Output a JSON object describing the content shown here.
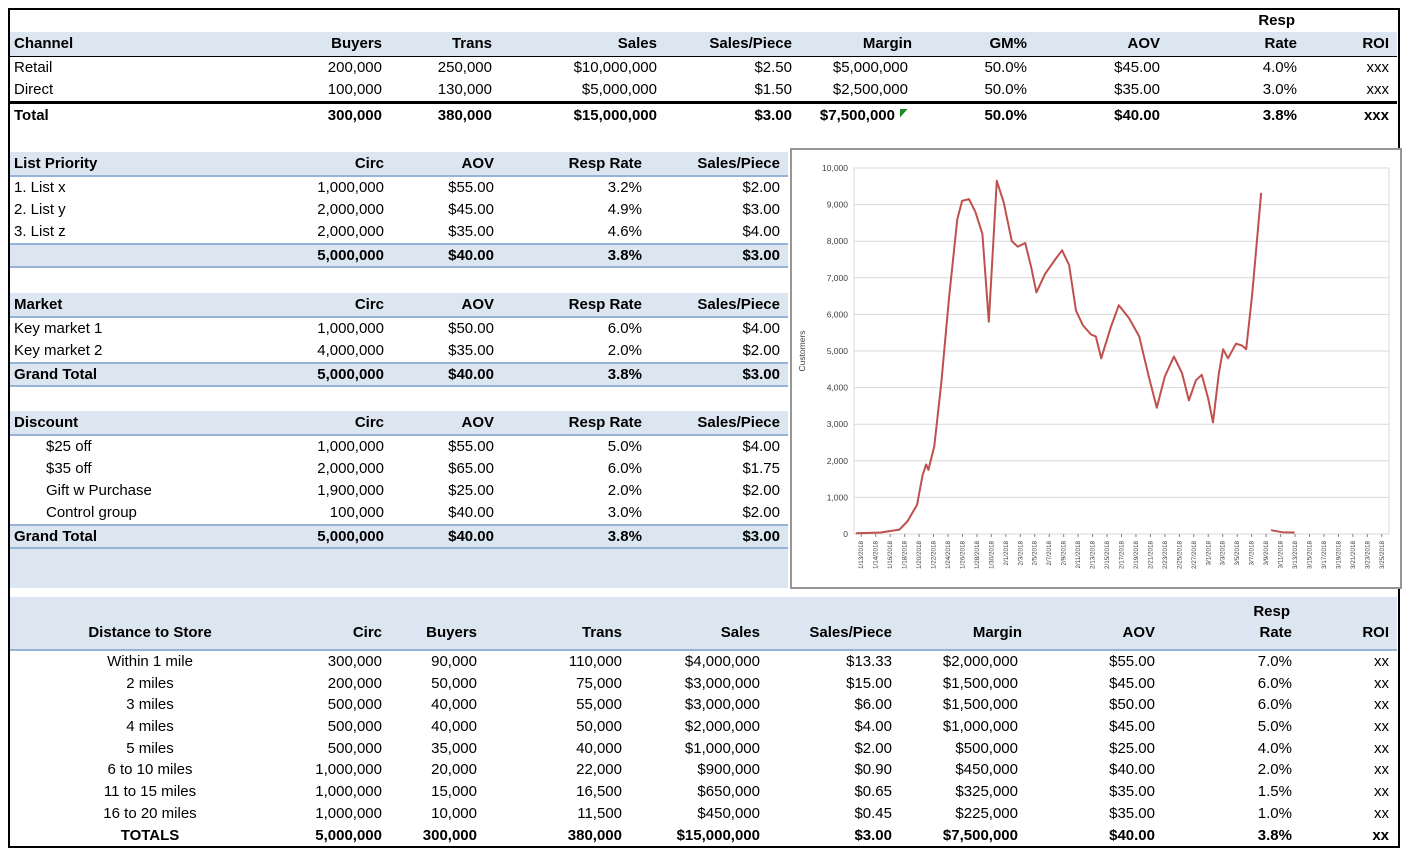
{
  "colors": {
    "header_fill": "#dce6f1",
    "steel_border": "#95b3d7",
    "black_border": "#000000",
    "line_color": "#c0504d",
    "grid_color": "#d9d9d9",
    "axis_color": "#808080",
    "flag_green": "#1f8a1f"
  },
  "channel_table": {
    "resp_top": "Resp",
    "headers": [
      "Channel",
      "Buyers",
      "Trans",
      "Sales",
      "Sales/Piece",
      "Margin",
      "GM%",
      "AOV",
      "Rate",
      "ROI"
    ],
    "rows": [
      [
        "Retail",
        "200,000",
        "250,000",
        "10,000,000",
        "$2.50",
        "5,000,000",
        "50.0%",
        "45.00",
        "4.0%",
        "xxx"
      ],
      [
        "Direct",
        "100,000",
        "130,000",
        "5,000,000",
        "$1.50",
        "2,500,000",
        "50.0%",
        "35.00",
        "3.0%",
        "xxx"
      ]
    ],
    "total": [
      "Total",
      "300,000",
      "380,000",
      "15,000,000",
      "$3.00",
      "7,500,000",
      "50.0%",
      "40.00",
      "3.8%",
      "xxx"
    ]
  },
  "sub_tables": [
    {
      "title": "List Priority",
      "headers": [
        "Circ",
        "AOV",
        "Resp Rate",
        "Sales/Piece"
      ],
      "indent": false,
      "rows": [
        [
          "1. List x",
          "1,000,000",
          "$55.00",
          "3.2%",
          "$2.00"
        ],
        [
          "2. List y",
          "2,000,000",
          "$45.00",
          "4.9%",
          "$3.00"
        ],
        [
          "3. List z",
          "2,000,000",
          "$35.00",
          "4.6%",
          "$4.00"
        ]
      ],
      "total": [
        "",
        "5,000,000",
        "$40.00",
        "3.8%",
        "$3.00"
      ]
    },
    {
      "title": "Market",
      "headers": [
        "Circ",
        "AOV",
        "Resp Rate",
        "Sales/Piece"
      ],
      "indent": false,
      "rows": [
        [
          "Key market 1",
          "1,000,000",
          "$50.00",
          "6.0%",
          "$4.00"
        ],
        [
          "Key market 2",
          "4,000,000",
          "$35.00",
          "2.0%",
          "$2.00"
        ]
      ],
      "total": [
        "Grand Total",
        "5,000,000",
        "$40.00",
        "3.8%",
        "$3.00"
      ]
    },
    {
      "title": "Discount",
      "headers": [
        "Circ",
        "AOV",
        "Resp Rate",
        "Sales/Piece"
      ],
      "indent": true,
      "rows": [
        [
          "$25 off",
          "1,000,000",
          "$55.00",
          "5.0%",
          "$4.00"
        ],
        [
          "$35 off",
          "2,000,000",
          "$65.00",
          "6.0%",
          "$1.75"
        ],
        [
          "Gift w Purchase",
          "1,900,000",
          "$25.00",
          "2.0%",
          "$2.00"
        ],
        [
          "Control group",
          "100,000",
          "$40.00",
          "3.0%",
          "$2.00"
        ]
      ],
      "total": [
        "Grand Total",
        "5,000,000",
        "$40.00",
        "3.8%",
        "$3.00"
      ]
    }
  ],
  "distance_table": {
    "resp_top": "Resp",
    "headers": [
      "Distance to Store",
      "Circ",
      "Buyers",
      "Trans",
      "Sales",
      "Sales/Piece",
      "Margin",
      "AOV",
      "Rate",
      "ROI"
    ],
    "rows": [
      [
        "Within 1 mile",
        "300,000",
        "90,000",
        "110,000",
        "4,000,000",
        "$13.33",
        "2,000,000",
        "55.00",
        "7.0%",
        "xx"
      ],
      [
        "2 miles",
        "200,000",
        "50,000",
        "75,000",
        "3,000,000",
        "$15.00",
        "1,500,000",
        "45.00",
        "6.0%",
        "xx"
      ],
      [
        "3 miles",
        "500,000",
        "40,000",
        "55,000",
        "3,000,000",
        "$6.00",
        "1,500,000",
        "50.00",
        "6.0%",
        "xx"
      ],
      [
        "4 miles",
        "500,000",
        "40,000",
        "50,000",
        "2,000,000",
        "$4.00",
        "1,000,000",
        "45.00",
        "5.0%",
        "xx"
      ],
      [
        "5 miles",
        "500,000",
        "35,000",
        "40,000",
        "1,000,000",
        "$2.00",
        "500,000",
        "25.00",
        "4.0%",
        "xx"
      ],
      [
        "6 to 10 miles",
        "1,000,000",
        "20,000",
        "22,000",
        "900,000",
        "$0.90",
        "450,000",
        "40.00",
        "2.0%",
        "xx"
      ],
      [
        "11 to 15 miles",
        "1,000,000",
        "15,000",
        "16,500",
        "650,000",
        "$0.65",
        "325,000",
        "35.00",
        "1.5%",
        "xx"
      ],
      [
        "16 to 20 miles",
        "1,000,000",
        "10,000",
        "11,500",
        "450,000",
        "$0.45",
        "225,000",
        "35.00",
        "1.0%",
        "xx"
      ]
    ],
    "total": [
      "TOTALS",
      "5,000,000",
      "300,000",
      "380,000",
      "15,000,000",
      "$3.00",
      "7,500,000",
      "40.00",
      "3.8%",
      "xx"
    ]
  },
  "chart_data": {
    "type": "line",
    "title": "",
    "ylabel": "Customers",
    "ylim": [
      0,
      10000
    ],
    "grid": true,
    "legend": "none",
    "y_ticks": [
      "0",
      "1,000",
      "2,000",
      "3,000",
      "4,000",
      "5,000",
      "6,000",
      "7,000",
      "8,000",
      "9,000",
      "10,000"
    ],
    "x_labels": [
      "1/13/2018",
      "1/14/2018",
      "1/16/2018",
      "1/18/2018",
      "1/20/2018",
      "1/22/2018",
      "1/24/2018",
      "1/26/2018",
      "1/28/2018",
      "1/30/2018",
      "2/1/2018",
      "2/3/2018",
      "2/5/2018",
      "2/7/2018",
      "2/9/2018",
      "2/11/2018",
      "2/13/2018",
      "2/15/2018",
      "2/17/2018",
      "2/19/2018",
      "2/21/2018",
      "2/23/2018",
      "2/25/2018",
      "2/27/2018",
      "3/1/2018",
      "3/3/2018",
      "3/5/2018",
      "3/7/2018",
      "3/9/2018",
      "3/11/2018",
      "3/13/2018",
      "3/15/2018",
      "3/17/2018",
      "3/19/2018",
      "3/21/2018",
      "3/23/2018",
      "3/25/2018"
    ],
    "series": [
      {
        "name": "Customers",
        "color": "#c0504d",
        "segments": [
          [
            [
              0.005,
              20
            ],
            [
              0.05,
              40
            ],
            [
              0.085,
              120
            ],
            [
              0.1,
              350
            ],
            [
              0.118,
              800
            ],
            [
              0.128,
              1600
            ],
            [
              0.135,
              1900
            ],
            [
              0.139,
              1750
            ],
            [
              0.15,
              2400
            ],
            [
              0.163,
              4100
            ],
            [
              0.178,
              6500
            ],
            [
              0.193,
              8600
            ],
            [
              0.202,
              9100
            ],
            [
              0.215,
              9150
            ],
            [
              0.227,
              8800
            ],
            [
              0.24,
              8200
            ],
            [
              0.252,
              5800
            ],
            [
              0.267,
              9650
            ],
            [
              0.28,
              9050
            ],
            [
              0.295,
              8000
            ],
            [
              0.306,
              7850
            ],
            [
              0.32,
              7950
            ],
            [
              0.331,
              7300
            ],
            [
              0.341,
              6600
            ],
            [
              0.357,
              7100
            ],
            [
              0.376,
              7500
            ],
            [
              0.389,
              7750
            ],
            [
              0.402,
              7350
            ],
            [
              0.415,
              6100
            ],
            [
              0.428,
              5700
            ],
            [
              0.443,
              5450
            ],
            [
              0.452,
              5400
            ],
            [
              0.462,
              4800
            ],
            [
              0.48,
              5650
            ],
            [
              0.495,
              6250
            ],
            [
              0.514,
              5900
            ],
            [
              0.533,
              5400
            ],
            [
              0.551,
              4300
            ],
            [
              0.566,
              3450
            ],
            [
              0.581,
              4300
            ],
            [
              0.598,
              4850
            ],
            [
              0.613,
              4400
            ],
            [
              0.626,
              3650
            ],
            [
              0.639,
              4200
            ],
            [
              0.65,
              4350
            ],
            [
              0.662,
              3700
            ],
            [
              0.671,
              3050
            ],
            [
              0.682,
              4400
            ],
            [
              0.69,
              5050
            ],
            [
              0.699,
              4800
            ],
            [
              0.714,
              5200
            ],
            [
              0.725,
              5150
            ],
            [
              0.733,
              5050
            ],
            [
              0.744,
              6500
            ],
            [
              0.753,
              8000
            ],
            [
              0.761,
              9300
            ]
          ],
          [
            [
              0.781,
              100
            ],
            [
              0.8,
              50
            ],
            [
              0.822,
              40
            ]
          ]
        ]
      }
    ]
  }
}
